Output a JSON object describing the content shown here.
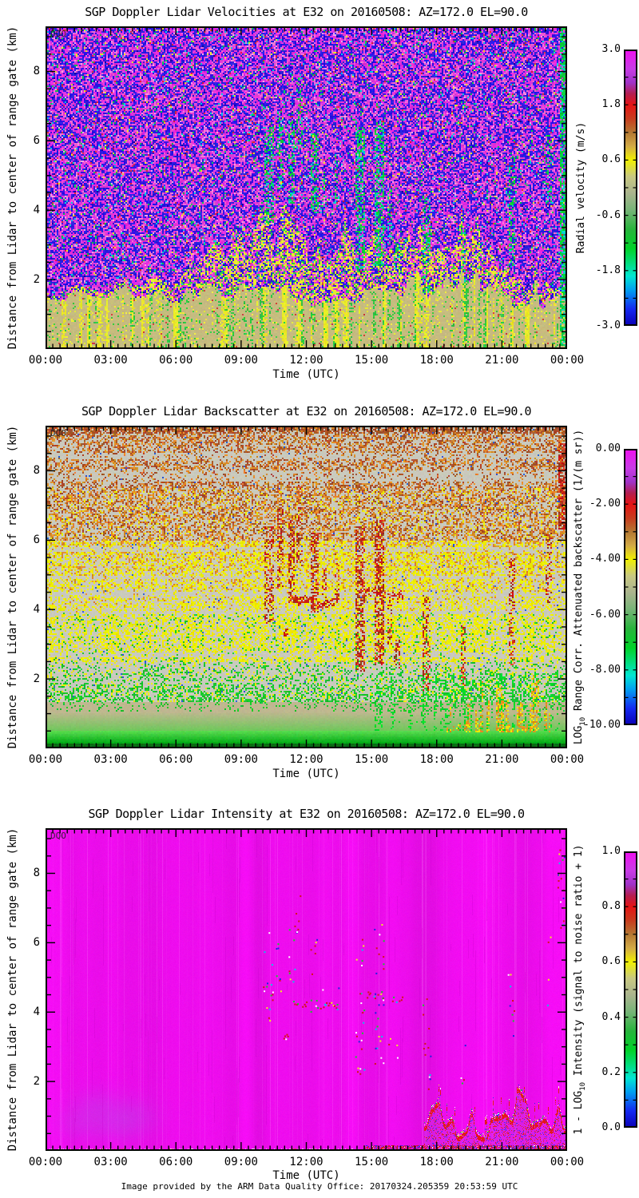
{
  "page": {
    "footer": "Image provided by the ARM Data Quality Office: 20170324.205359 20:53:59 UTC"
  },
  "shared": {
    "xlabel": "Time (UTC)",
    "ylabel": "Distance from Lidar to center of range gate (km)",
    "x_ticks": [
      "00:00",
      "03:00",
      "06:00",
      "09:00",
      "12:00",
      "15:00",
      "18:00",
      "21:00",
      "00:00"
    ],
    "y_ticks": [
      "2",
      "4",
      "6",
      "8"
    ],
    "y_tick_km": [
      2,
      4,
      6,
      8
    ],
    "x_range_hours": [
      0,
      24
    ],
    "y_range_km": [
      0,
      9.3
    ],
    "watermark": "DQO",
    "colormap": [
      [
        0.0,
        "#0a00b4"
      ],
      [
        0.06,
        "#1428f0"
      ],
      [
        0.13,
        "#00a0f0"
      ],
      [
        0.18,
        "#00e6d2"
      ],
      [
        0.23,
        "#00dc78"
      ],
      [
        0.28,
        "#00d228"
      ],
      [
        0.35,
        "#28b43c"
      ],
      [
        0.42,
        "#78b478"
      ],
      [
        0.48,
        "#aab48e"
      ],
      [
        0.54,
        "#c8c882"
      ],
      [
        0.6,
        "#f0f000"
      ],
      [
        0.65,
        "#d2aa46"
      ],
      [
        0.7,
        "#b47832"
      ],
      [
        0.75,
        "#c83c1e"
      ],
      [
        0.8,
        "#e61414"
      ],
      [
        0.84,
        "#b41e50"
      ],
      [
        0.88,
        "#a032c8"
      ],
      [
        0.93,
        "#c83ce6"
      ],
      [
        1.0,
        "#f00ff0"
      ]
    ],
    "cloud_events": [
      {
        "t0": 10.0,
        "t1": 10.45,
        "k0": 3.6,
        "k1": 6.4,
        "d": 0.5
      },
      {
        "t0": 10.6,
        "t1": 10.9,
        "k0": 4.6,
        "k1": 6.9,
        "d": 0.4
      },
      {
        "t0": 11.15,
        "t1": 11.45,
        "k0": 4.2,
        "k1": 6.6,
        "d": 0.55
      },
      {
        "t0": 11.5,
        "t1": 11.8,
        "k0": 5.2,
        "k1": 7.9,
        "d": 0.3
      },
      {
        "t0": 12.15,
        "t1": 12.5,
        "k0": 3.9,
        "k1": 6.2,
        "d": 0.5
      },
      {
        "t0": 12.7,
        "t1": 12.9,
        "k0": 4.0,
        "k1": 5.2,
        "d": 0.35
      },
      {
        "t0": 13.3,
        "t1": 13.5,
        "k0": 4.2,
        "k1": 5.6,
        "d": 0.3
      },
      {
        "t0": 14.25,
        "t1": 14.65,
        "k0": 2.2,
        "k1": 6.4,
        "d": 0.55
      },
      {
        "t0": 15.1,
        "t1": 15.55,
        "k0": 2.4,
        "k1": 6.6,
        "d": 0.6
      },
      {
        "t0": 15.7,
        "t1": 15.9,
        "k0": 3.0,
        "k1": 4.6,
        "d": 0.35
      },
      {
        "t0": 16.0,
        "t1": 16.3,
        "k0": 2.3,
        "k1": 3.2,
        "d": 0.4
      },
      {
        "t0": 17.3,
        "t1": 17.7,
        "k0": 1.6,
        "k1": 4.4,
        "d": 0.45
      },
      {
        "t0": 19.05,
        "t1": 19.3,
        "k0": 1.8,
        "k1": 3.6,
        "d": 0.4
      },
      {
        "t0": 21.25,
        "t1": 21.55,
        "k0": 2.4,
        "k1": 5.6,
        "d": 0.4
      },
      {
        "t0": 23.0,
        "t1": 23.25,
        "k0": 4.2,
        "k1": 6.2,
        "d": 0.35
      },
      {
        "t0": 23.55,
        "t1": 24.0,
        "k0": 6.3,
        "k1": 8.8,
        "d": 0.8,
        "bs": 1
      },
      {
        "t0": 23.62,
        "t1": 24.0,
        "k0": 0.0,
        "k1": 9.3,
        "d": 0.7,
        "vel": 1
      }
    ],
    "arc_events": [
      {
        "t0": 11.4,
        "t1": 12.3,
        "k": 4.25
      },
      {
        "t0": 12.5,
        "t1": 13.4,
        "k": 4.2
      },
      {
        "t0": 14.6,
        "t1": 15.6,
        "k": 4.5
      },
      {
        "t0": 15.9,
        "t1": 16.4,
        "k": 4.4
      },
      {
        "t0": 10.9,
        "t1": 11.15,
        "k": 3.3
      }
    ],
    "blobs": [
      {
        "t": 1.6,
        "k": 0.8
      },
      {
        "t": 3.3,
        "k": 0.75
      },
      {
        "t": 4.1,
        "k": 1.0
      },
      {
        "t": 2.4,
        "k": 1.3
      }
    ]
  },
  "panels": [
    {
      "title": "SGP Doppler Lidar Velocities at E32 on 20160508: AZ=172.0 EL=90.0",
      "texture": "velocity",
      "cbar": {
        "pre": "Radial velocity (m/s)",
        "sub": "",
        "post": "",
        "ticks": [
          "3.0",
          "1.8",
          "0.6",
          "-0.6",
          "-1.8",
          "-3.0"
        ],
        "range": [
          -3,
          3
        ]
      }
    },
    {
      "title": "SGP Doppler Lidar Backscatter at E32 on 20160508: AZ=172.0 EL=90.0",
      "texture": "backscatter",
      "cbar": {
        "pre": "LOG",
        "sub": "10",
        "post": " Range Corr. Attenuated backscatter (1/(m sr))",
        "ticks": [
          "0.00",
          "-2.00",
          "-4.00",
          "-6.00",
          "-8.00",
          "-10.00"
        ],
        "range": [
          -10,
          0
        ]
      }
    },
    {
      "title": "SGP Doppler Lidar Intensity at E32 on 20160508: AZ=172.0 EL=90.0",
      "texture": "intensity",
      "cbar": {
        "pre": "1 - LOG",
        "sub": "10",
        "post": " Intensity (signal to noise ratio + 1)",
        "ticks": [
          "1.0",
          "0.8",
          "0.6",
          "0.4",
          "0.2",
          "0.0"
        ],
        "range": [
          0,
          1
        ]
      }
    }
  ],
  "chart_data": [
    {
      "type": "heatmap",
      "title": "SGP Doppler Lidar Velocities at E32 on 20160508: AZ=172.0 EL=90.0",
      "xlabel": "Time (UTC)",
      "ylabel": "Distance from Lidar to center of range gate (km)",
      "x_ticks": [
        "00:00",
        "03:00",
        "06:00",
        "09:00",
        "12:00",
        "15:00",
        "18:00",
        "21:00",
        "00:00"
      ],
      "x_range_hours": [
        0,
        24
      ],
      "y_range_km": [
        0,
        9.3
      ],
      "y_ticks": [
        2,
        4,
        6,
        8
      ],
      "colorbar": {
        "label": "Radial velocity (m/s)",
        "ticks": [
          3.0,
          1.8,
          0.6,
          -0.6,
          -1.8,
          -3.0
        ],
        "range": [
          -3,
          3
        ]
      },
      "features": [
        "Random blue/magenta velocity noise fills region above boundary layer (no signal)",
        "Tan/gray boundary layer with yellow and green vertical streaks below ~1.5-2.5 km all day",
        "Yellow-green speckle transition band above boundary layer, deepest 09:00-15:00",
        "Green/cyan vertical cloud-virga streaks near 10:00, 12:15, 14:20, 15:10, 17:30, 19:00, 21:20",
        "Full-height green/cyan column at far right edge ~23:40-24:00"
      ]
    },
    {
      "type": "heatmap",
      "title": "SGP Doppler Lidar Backscatter at E32 on 20160508: AZ=172.0 EL=90.0",
      "xlabel": "Time (UTC)",
      "ylabel": "Distance from Lidar to center of range gate (km)",
      "x_ticks": [
        "00:00",
        "03:00",
        "06:00",
        "09:00",
        "12:00",
        "15:00",
        "18:00",
        "21:00",
        "00:00"
      ],
      "x_range_hours": [
        0,
        24
      ],
      "y_range_km": [
        0,
        9.3
      ],
      "y_ticks": [
        2,
        4,
        6,
        8
      ],
      "colorbar": {
        "label": "LOG10 Range Corr. Attenuated backscatter (1/(m sr))",
        "ticks": [
          0,
          -2,
          -4,
          -6,
          -8,
          -10
        ],
        "range": [
          -10,
          0
        ]
      },
      "features": [
        "Speckled noise graded with height: brown/orange above ~6 km, yellow 2.5-6 km, green 1.3-2.5 km",
        "Smooth tan layer ~0.6-1.3 km, bright green strong-return band below ~0.6 km, dark base with blue dots",
        "Red cloud/virga streaks 10:00-17:30 between 2-8 km and dotted red arcs near 4.2-4.5 km",
        "Red cloud patch at far right ~23:35-24:00 between 6.3-8.8 km",
        "Dense green low-level streaks after 15:00; orange/yellow jagged plumes 0.5-1.9 km from ~18:20-23:20"
      ]
    },
    {
      "type": "heatmap",
      "title": "SGP Doppler Lidar Intensity at E32 on 20160508: AZ=172.0 EL=90.0",
      "xlabel": "Time (UTC)",
      "ylabel": "Distance from Lidar to center of range gate (km)",
      "x_ticks": [
        "00:00",
        "03:00",
        "06:00",
        "09:00",
        "12:00",
        "15:00",
        "18:00",
        "21:00",
        "00:00"
      ],
      "x_range_hours": [
        0,
        24
      ],
      "y_range_km": [
        0,
        9.3
      ],
      "y_ticks": [
        2,
        4,
        6,
        8
      ],
      "colorbar": {
        "label": "1 - LOG10 Intensity (signal to noise ratio + 1)",
        "ticks": [
          1.0,
          0.8,
          0.6,
          0.4,
          0.2,
          0.0
        ],
        "range": [
          0,
          1
        ]
      },
      "features": [
        "Nearly uniform magenta field (intensity ~1) with faint pale vertical streaks",
        "Small multicolored speckle clusters 10:00-17:30 between 2-8 km where clouds occur",
        "Red-outlined jagged high-intensity layer 0.3-1.7 km from ~17:30-24:00 with blue/green/yellow dots",
        "Red/blue speckled strip along the bottom after ~14:40; pale thin line along bottom before that",
        "Speck cluster at far right ~23:40 near 7.6-8.7 km"
      ]
    }
  ]
}
